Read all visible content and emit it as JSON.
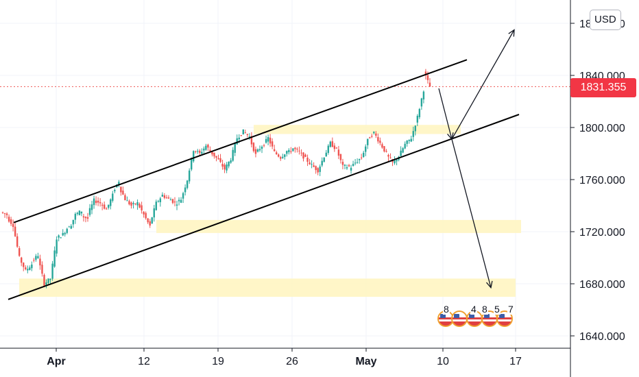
{
  "header": {
    "currency": "USD"
  },
  "price_label": {
    "value": "1831.355",
    "price": 1831.355,
    "color": "#f23645"
  },
  "events": {
    "labels": [
      "8",
      "4",
      "8",
      "5",
      "7"
    ],
    "icon": "us-flag-icon"
  },
  "colors": {
    "bull": "#26a69a",
    "bear": "#ef5350",
    "zone": "#fff5c2",
    "channel": "#000000"
  },
  "chart_data": {
    "type": "candlestick",
    "title": "",
    "xlabel": "",
    "ylabel": "",
    "ylim": [
      1630,
      1850
    ],
    "grid": true,
    "y_ticks": [
      "1640.000",
      "1680.000",
      "1720.000",
      "1760.000",
      "1800.000",
      "1840.000",
      "1880.000"
    ],
    "x_ticks": [
      {
        "label": "Apr",
        "major": true
      },
      {
        "label": "12",
        "major": false
      },
      {
        "label": "19",
        "major": false
      },
      {
        "label": "26",
        "major": false
      },
      {
        "label": "May",
        "major": true
      },
      {
        "label": "10",
        "major": false
      },
      {
        "label": "17",
        "major": false
      }
    ],
    "last_price": 1831.355,
    "price_path": [
      [
        1735,
        1733
      ],
      [
        1731,
        1725
      ],
      [
        1725,
        1700
      ],
      [
        1700,
        1690
      ],
      [
        1690,
        1695
      ],
      [
        1697,
        1702
      ],
      [
        1700,
        1680
      ],
      [
        1680,
        1684
      ],
      [
        1684,
        1715
      ],
      [
        1715,
        1718
      ],
      [
        1718,
        1725
      ],
      [
        1722,
        1733
      ],
      [
        1733,
        1736
      ],
      [
        1732,
        1730
      ],
      [
        1733,
        1744
      ],
      [
        1744,
        1742
      ],
      [
        1742,
        1737
      ],
      [
        1737,
        1748
      ],
      [
        1750,
        1759
      ],
      [
        1755,
        1745
      ],
      [
        1745,
        1740
      ],
      [
        1740,
        1742
      ],
      [
        1742,
        1733
      ],
      [
        1733,
        1724
      ],
      [
        1726,
        1742
      ],
      [
        1742,
        1748
      ],
      [
        1748,
        1745
      ],
      [
        1746,
        1742
      ],
      [
        1741,
        1745
      ],
      [
        1745,
        1760
      ],
      [
        1760,
        1783
      ],
      [
        1783,
        1780
      ],
      [
        1780,
        1786
      ],
      [
        1786,
        1780
      ],
      [
        1780,
        1775
      ],
      [
        1775,
        1768
      ],
      [
        1768,
        1776
      ],
      [
        1776,
        1792
      ],
      [
        1792,
        1797
      ],
      [
        1797,
        1793
      ],
      [
        1792,
        1779
      ],
      [
        1780,
        1786
      ],
      [
        1785,
        1792
      ],
      [
        1792,
        1781
      ],
      [
        1781,
        1777
      ],
      [
        1777,
        1782
      ],
      [
        1780,
        1784
      ],
      [
        1784,
        1781
      ],
      [
        1781,
        1776
      ],
      [
        1776,
        1771
      ],
      [
        1771,
        1767
      ],
      [
        1767,
        1778
      ],
      [
        1778,
        1788
      ],
      [
        1788,
        1783
      ],
      [
        1783,
        1770
      ],
      [
        1770,
        1770
      ],
      [
        1768,
        1773
      ],
      [
        1773,
        1777
      ],
      [
        1777,
        1790
      ],
      [
        1791,
        1796
      ],
      [
        1796,
        1788
      ],
      [
        1788,
        1780
      ],
      [
        1779,
        1773
      ],
      [
        1772,
        1778
      ],
      [
        1778,
        1787
      ],
      [
        1787,
        1792
      ],
      [
        1792,
        1808
      ],
      [
        1808,
        1829
      ],
      [
        1843,
        1831.355
      ]
    ],
    "channel": {
      "upper": [
        {
          "x": 20,
          "y": 1727
        },
        {
          "x": 681,
          "y": 1852
        }
      ],
      "lower": [
        {
          "x": 12,
          "y": 1668
        },
        {
          "x": 757,
          "y": 1810
        }
      ]
    },
    "zones": [
      {
        "x0": 370,
        "x1": 672,
        "low": 1795,
        "high": 1802
      },
      {
        "x0": 228,
        "x1": 760,
        "low": 1719,
        "high": 1729
      },
      {
        "x0": 28,
        "x1": 752,
        "low": 1670,
        "high": 1684
      }
    ],
    "projections": [
      {
        "from": {
          "x": 640,
          "y": 1830
        },
        "to": {
          "x": 659,
          "y": 1791
        }
      },
      {
        "from": {
          "x": 659,
          "y": 1791
        },
        "to": {
          "x": 750,
          "y": 1875
        }
      },
      {
        "from": {
          "x": 659,
          "y": 1791
        },
        "to": {
          "x": 716,
          "y": 1677
        }
      }
    ]
  }
}
